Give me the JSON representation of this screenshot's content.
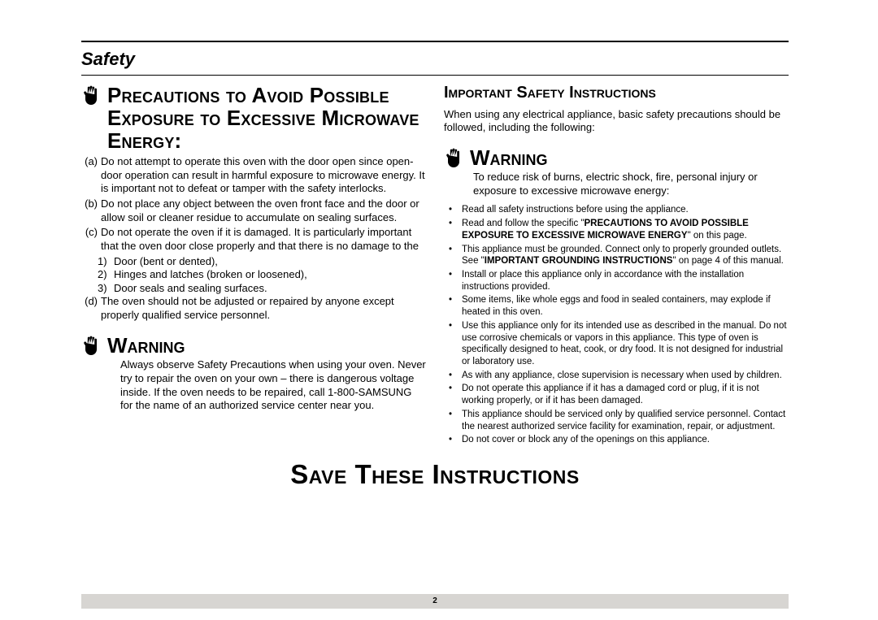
{
  "page": {
    "number": "2",
    "section_title": "Safety",
    "save_line": "Save These Instructions"
  },
  "left": {
    "precautions_heading": "Precautions to Avoid Possible Exposure to Excessive Microwave Energy:",
    "items": {
      "a": "Do not attempt to operate this oven with the door open since open-door operation can result in harmful exposure to microwave energy. It is important not to defeat or tamper with the safety interlocks.",
      "b": "Do not place any object between the oven front face and the door or allow soil or cleaner residue to accumulate on sealing surfaces.",
      "c_intro": "Do not operate the oven if it is damaged. It is particularly important that the oven door close properly and that there is no damage to the",
      "c1": "Door (bent or dented),",
      "c2": "Hinges and latches (broken or loosened),",
      "c3": "Door seals and sealing surfaces.",
      "d": "The oven should not be adjusted or repaired by anyone except properly qualified service personnel."
    },
    "warning_heading": "Warning",
    "warning_body": "Always observe Safety Precautions when using your oven. Never try to repair the oven on your own – there is dangerous voltage inside. If the oven needs to be repaired, call 1-800-SAMSUNG  for the name of an authorized service center near you."
  },
  "right": {
    "important_heading": "Important Safety Instructions",
    "intro": "When using any electrical appliance, basic safety precautions should be followed, including the following:",
    "warning_heading": "Warning",
    "warning_body": "To reduce risk of burns, electric shock, fire, personal injury or exposure to excessive microwave energy:",
    "bullets": [
      {
        "t": "Read all safety instructions before using the appliance."
      },
      {
        "pre": "Read and follow the specific \"",
        "bold": "PRECAUTIONS TO AVOID POSSIBLE EXPOSURE TO EXCESSIVE MICROWAVE ENERGY",
        "post": "\" on this page."
      },
      {
        "pre": "This appliance must be grounded. Connect only to properly grounded outlets. See \"",
        "bold": "IMPORTANT GROUNDING INSTRUCTIONS",
        "post": "\" on page 4 of this manual."
      },
      {
        "t": "Install or place this appliance only in accordance with the installation instructions provided."
      },
      {
        "t": "Some items, like whole eggs and food in sealed containers, may explode if heated in this oven."
      },
      {
        "t": "Use this appliance only for its intended use as described in the manual. Do not use corrosive chemicals or vapors in this appliance. This type of oven is specifically designed to heat, cook, or dry food. It is not designed for industrial or laboratory use."
      },
      {
        "t": "As with any appliance, close supervision is necessary when used by children."
      },
      {
        "t": "Do not operate this appliance if it has a damaged cord or plug, if it is not working properly, or if it has been damaged."
      },
      {
        "t": "This appliance should be serviced only by qualified service personnel. Contact the nearest authorized service facility for examination, repair, or adjustment."
      },
      {
        "t": "Do not cover or block any of the openings on this appliance."
      }
    ]
  },
  "style": {
    "text_color": "#000000",
    "background_color": "#ffffff",
    "footer_bg": "#d7d5d2",
    "heading_fontsize_pt": 20,
    "body_fontsize_pt": 10,
    "bullet_fontsize_pt": 9,
    "font_family": "Arial"
  }
}
